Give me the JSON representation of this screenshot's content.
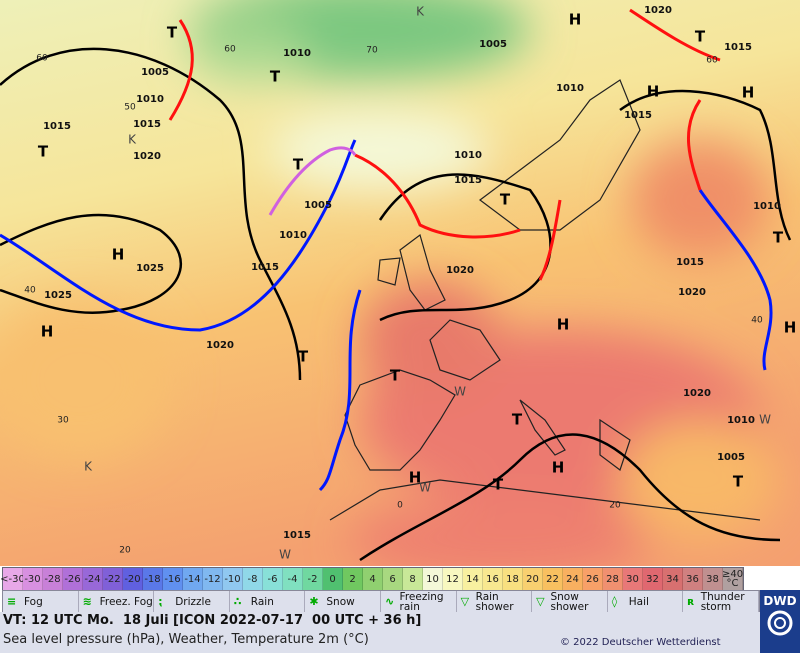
{
  "map": {
    "pressure_labels": [
      "1005",
      "1010",
      "1015",
      "1020",
      "1015",
      "1025",
      "1025",
      "1020",
      "1015",
      "1010",
      "1005",
      "1010",
      "1005",
      "1010",
      "1015",
      "1010",
      "1015",
      "1020",
      "1015",
      "1020",
      "1015",
      "1020",
      "1010",
      "1020",
      "1010",
      "1005",
      "1015"
    ],
    "grid_labels": [
      "60",
      "50",
      "40",
      "30",
      "20",
      "60",
      "70",
      "60",
      "40",
      "0",
      "20"
    ],
    "highs": [
      "H",
      "H",
      "H",
      "H",
      "H",
      "H",
      "H",
      "H",
      "H"
    ],
    "lows": [
      "T",
      "T",
      "T",
      "T",
      "T",
      "T",
      "T",
      "T",
      "T",
      "T",
      "T",
      "T"
    ],
    "other_marks": [
      "K",
      "K",
      "K",
      "W",
      "W",
      "W",
      "W"
    ],
    "scale": {
      "labels": [
        "<-30",
        "-30",
        "-28",
        "-26",
        "-24",
        "-22",
        "-20",
        "-18",
        "-16",
        "-14",
        "-12",
        "-10",
        "-8",
        "-6",
        "-4",
        "-2",
        "0",
        "2",
        "4",
        "6",
        "8",
        "10",
        "12",
        "14",
        "16",
        "18",
        "20",
        "22",
        "24",
        "26",
        "28",
        "30",
        "32",
        "34",
        "36",
        "38",
        "≥40 °C"
      ],
      "colors": [
        "#e8a8e8",
        "#d890e0",
        "#c880d8",
        "#b070d8",
        "#9868d8",
        "#8060d8",
        "#6060e0",
        "#5a78e8",
        "#6090f0",
        "#70a8f0",
        "#80b8f0",
        "#90c8f0",
        "#90d8e8",
        "#88e0d8",
        "#80e0c0",
        "#70d8a0",
        "#50c070",
        "#70c860",
        "#90d070",
        "#a8d880",
        "#c8e898",
        "#f4f8d8",
        "#f8f8c0",
        "#f8f0a0",
        "#f8e890",
        "#f8e080",
        "#f8d070",
        "#f8c060",
        "#f8b060",
        "#f8a068",
        "#f09070",
        "#e87878",
        "#e06870",
        "#d87070",
        "#d08080",
        "#c09090",
        "#b0a0a0"
      ]
    },
    "legend": [
      "Fog",
      "Freez. Fog",
      "Drizzle",
      "Rain",
      "Snow",
      "Freezing rain",
      "Rain shower",
      "Snow shower",
      "Hail",
      "Thunder storm"
    ],
    "valid_time": "VT: 12 UTC Mo.  18 Juli [ICON 2022-07-17  00 UTC + 36 h]",
    "caption": "Sea level pressure (hPa), Weather, Temperature 2m (°C)",
    "copyright": "© 2022 Deutscher Wetterdienst",
    "logo": "DWD"
  }
}
